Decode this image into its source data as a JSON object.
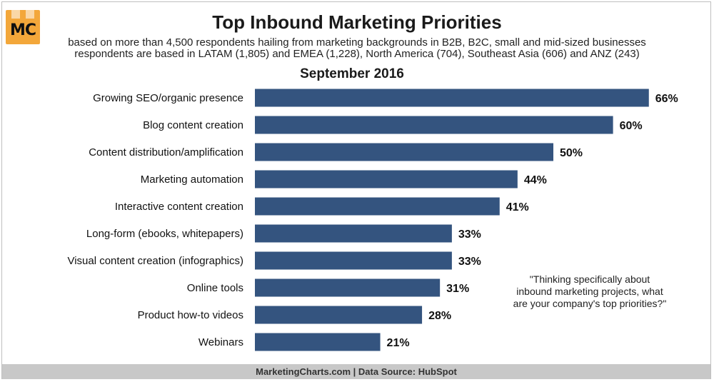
{
  "logo": {
    "text": "MC"
  },
  "footer": {
    "text": "MarketingCharts.com | Data Source: HubSpot"
  },
  "chart_data": {
    "type": "bar",
    "orientation": "horizontal",
    "title": "Top Inbound Marketing Priorities",
    "subtitle_lines": [
      "based on more than 4,500 respondents hailing from marketing backgrounds in B2B, B2C, small and mid-sized businesses",
      "respondents are based in LATAM (1,805) and EMEA (1,228), North America (704), Southeast Asia (606) and ANZ (243)"
    ],
    "period": "September 2016",
    "categories": [
      "Growing SEO/organic presence",
      "Blog content creation",
      "Content distribution/amplification",
      "Marketing automation",
      "Interactive content creation",
      "Long-form (ebooks, whitepapers)",
      "Visual content creation (infographics)",
      "Online tools",
      "Product how-to videos",
      "Webinars"
    ],
    "values": [
      66,
      60,
      50,
      44,
      41,
      33,
      33,
      31,
      28,
      21
    ],
    "value_labels": [
      "66%",
      "60%",
      "50%",
      "44%",
      "41%",
      "33%",
      "33%",
      "31%",
      "28%",
      "21%"
    ],
    "unit": "%",
    "bar_color": "#34547f",
    "grid": false,
    "legend": "none",
    "annotation": "\"Thinking specifically about inbound marketing projects, what are your company's top priorities?\""
  }
}
